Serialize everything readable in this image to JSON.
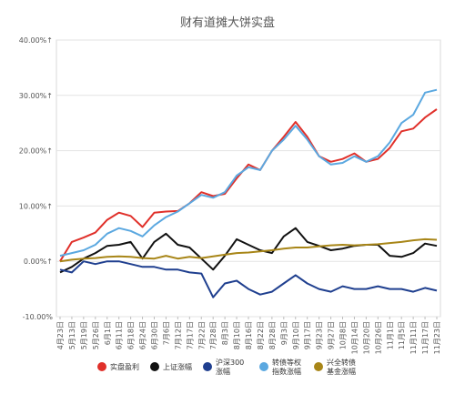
{
  "chart_data": {
    "type": "line",
    "title": "财有道摊大饼实盘",
    "y_ticks": [
      "40.00%↑",
      "30.00%↑",
      "20.00%↑",
      "10.00%↑",
      "0.00%↑",
      "-10.00%"
    ],
    "ylim": [
      -10,
      40
    ],
    "grid": true,
    "legend_position": "bottom",
    "x_tick_labels": [
      "4月23日",
      "5月13日",
      "5月19日",
      "5月26日",
      "6月1日",
      "6月11日",
      "6月18日",
      "6月24日",
      "6月30日",
      "7月6日",
      "7月12日",
      "7月17日",
      "7月22日",
      "7月28日",
      "8月3日",
      "8月10日",
      "8月16日",
      "8月22日",
      "8月28日",
      "9月3日",
      "9月10日",
      "9月17日",
      "9月23日",
      "9月27日",
      "10月8日",
      "10月14日",
      "10月20日",
      "10月26日",
      "11月1日",
      "11月5日",
      "11月11日",
      "11月17日",
      "11月23日"
    ],
    "series": [
      {
        "name": "实盘盈利",
        "color": "#e0302a",
        "values": [
          0,
          3.5,
          4.3,
          5.2,
          7.5,
          8.8,
          8.2,
          6.2,
          8.8,
          9.0,
          9.1,
          10.5,
          12.5,
          11.8,
          12.2,
          15.0,
          17.5,
          16.5,
          20.0,
          22.5,
          25.2,
          22.5,
          19.0,
          18.0,
          18.5,
          19.5,
          18.0,
          18.5,
          20.5,
          23.5,
          24.0,
          26.0,
          27.5
        ]
      },
      {
        "name": "上证涨幅",
        "color": "#111111",
        "values": [
          -2.0,
          -1.0,
          0.5,
          1.5,
          2.8,
          3.0,
          3.5,
          0.5,
          3.5,
          5.0,
          3.0,
          2.5,
          0.5,
          -1.5,
          1.0,
          4.0,
          3.0,
          2.0,
          1.5,
          4.5,
          6.0,
          3.5,
          2.8,
          2.0,
          2.3,
          2.8,
          3.0,
          3.0,
          1.0,
          0.8,
          1.5,
          3.2,
          2.8
        ]
      },
      {
        "name": "沪深300涨幅",
        "color": "#1f3f8f",
        "values": [
          -1.5,
          -2.0,
          0,
          -0.5,
          0,
          0,
          -0.5,
          -1.0,
          -1.0,
          -1.5,
          -1.5,
          -2.0,
          -2.2,
          -6.5,
          -4.0,
          -3.5,
          -5.0,
          -6.0,
          -5.5,
          -4.0,
          -2.5,
          -4.0,
          -5.0,
          -5.5,
          -4.5,
          -5.0,
          -5.0,
          -4.5,
          -5.0,
          -5.0,
          -5.5,
          -4.8,
          -5.3
        ]
      },
      {
        "name": "转债等权指数涨幅",
        "color": "#5ba8e0",
        "values": [
          1.0,
          1.5,
          2.0,
          3.0,
          5.0,
          6.0,
          5.5,
          4.5,
          6.5,
          8.0,
          9.0,
          10.5,
          12.0,
          11.5,
          12.5,
          15.5,
          17.0,
          16.5,
          20.0,
          22.0,
          24.5,
          22.0,
          19.0,
          17.5,
          17.8,
          19.0,
          18.0,
          19.0,
          21.5,
          25.0,
          26.5,
          30.5,
          31.0
        ]
      },
      {
        "name": "兴全转债基金涨幅",
        "color": "#a88618",
        "values": [
          0,
          0.3,
          0.5,
          0.6,
          0.8,
          0.9,
          0.8,
          0.6,
          0.5,
          1.0,
          0.5,
          0.8,
          0.6,
          0.9,
          1.2,
          1.5,
          1.6,
          1.8,
          2.0,
          2.3,
          2.5,
          2.5,
          2.7,
          2.9,
          3.0,
          2.9,
          3.0,
          3.1,
          3.3,
          3.5,
          3.8,
          4.0,
          3.9
        ]
      }
    ],
    "legend": [
      {
        "label": "实盘盈利",
        "color": "#e0302a"
      },
      {
        "label": "上证涨幅",
        "color": "#111111"
      },
      {
        "label": "沪深300\n涨幅",
        "color": "#1f3f8f"
      },
      {
        "label": "转债等权\n指数涨幅",
        "color": "#5ba8e0"
      },
      {
        "label": "兴全转债\n基金涨幅",
        "color": "#a88618"
      }
    ]
  }
}
